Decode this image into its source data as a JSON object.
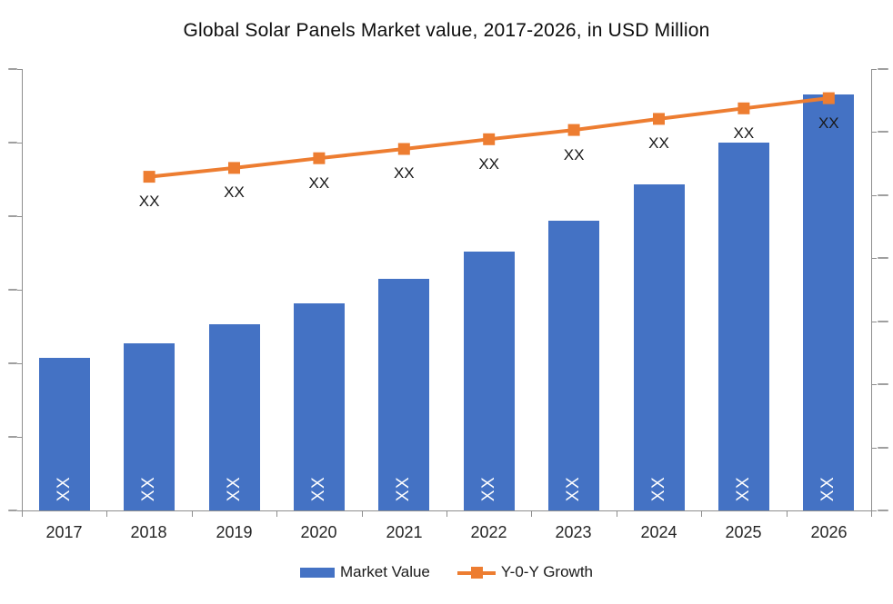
{
  "title": "Global Solar Panels Market value, 2017-2026, in USD Million",
  "chart_data": {
    "type": "combo",
    "title": "Global Solar Panels Market value, 2017-2026, in USD Million",
    "categories": [
      "2017",
      "2018",
      "2019",
      "2020",
      "2021",
      "2022",
      "2023",
      "2024",
      "2025",
      "2026"
    ],
    "series": [
      {
        "name": "Market Value",
        "type": "bar",
        "color": "#4472C4",
        "data_labels": [
          "XX",
          "XX",
          "XX",
          "XX",
          "XX",
          "XX",
          "XX",
          "XX",
          "XX",
          "XX"
        ],
        "values_norm": [
          0.346,
          0.379,
          0.422,
          0.469,
          0.525,
          0.586,
          0.656,
          0.739,
          0.833,
          0.942
        ]
      },
      {
        "name": "Y-0-Y Growth",
        "type": "line",
        "color": "#ED7D31",
        "marker": "square",
        "categories": [
          "2018",
          "2019",
          "2020",
          "2021",
          "2022",
          "2023",
          "2024",
          "2025",
          "2026"
        ],
        "data_labels": [
          "XX",
          "XX",
          "XX",
          "XX",
          "XX",
          "XX",
          "XX",
          "XX",
          "XX"
        ],
        "values_norm": [
          0.756,
          0.776,
          0.798,
          0.819,
          0.841,
          0.862,
          0.887,
          0.911,
          0.934
        ]
      }
    ],
    "axes": {
      "left_tick_count": 7,
      "right_tick_count": 8,
      "x_boundary_tick_count": 11,
      "tick_label_note": "axis tick labels rendered as illegible micro-marks in source image"
    },
    "grid": false,
    "legend_position": "bottom"
  },
  "legend": {
    "items": [
      {
        "label": "Market Value",
        "swatch": "bar",
        "color": "#4472C4"
      },
      {
        "label": "Y-0-Y Growth",
        "swatch": "line-marker",
        "color": "#ED7D31"
      }
    ]
  },
  "colors": {
    "bar": "#4472C4",
    "line": "#ED7D31",
    "axis": "#8e8e8e",
    "text": "#1a1a1a",
    "bar_label_text": "#ffffff"
  }
}
